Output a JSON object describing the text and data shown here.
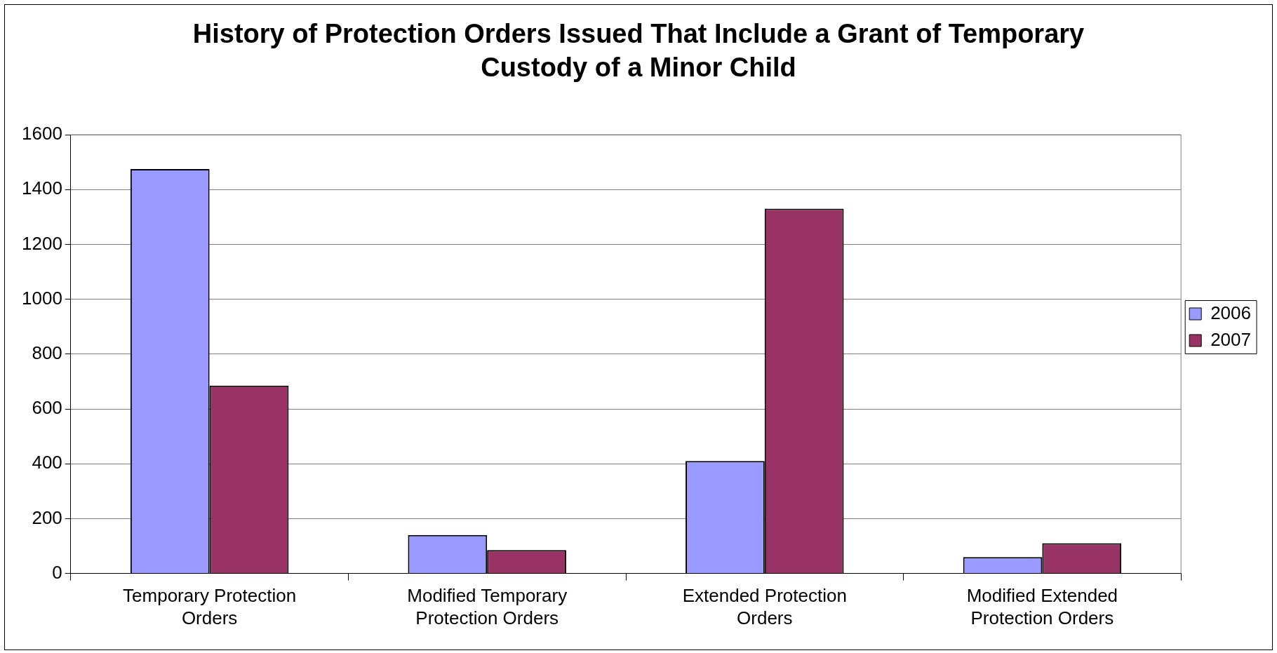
{
  "chart_data": {
    "type": "bar",
    "title": "History of Protection Orders Issued That Include a Grant of Temporary Custody of a Minor Child",
    "categories": [
      "Temporary Protection Orders",
      "Modified Temporary Protection Orders",
      "Extended Protection Orders",
      "Modified Extended Protection Orders"
    ],
    "series": [
      {
        "name": "2006",
        "color": "#9999ff",
        "values": [
          1475,
          140,
          410,
          60
        ]
      },
      {
        "name": "2007",
        "color": "#993366",
        "values": [
          685,
          85,
          1330,
          110
        ]
      }
    ],
    "ylim": [
      0,
      1600
    ],
    "yticks": [
      0,
      200,
      400,
      600,
      800,
      1000,
      1200,
      1400,
      1600
    ],
    "grid": "y",
    "legend": "right"
  }
}
